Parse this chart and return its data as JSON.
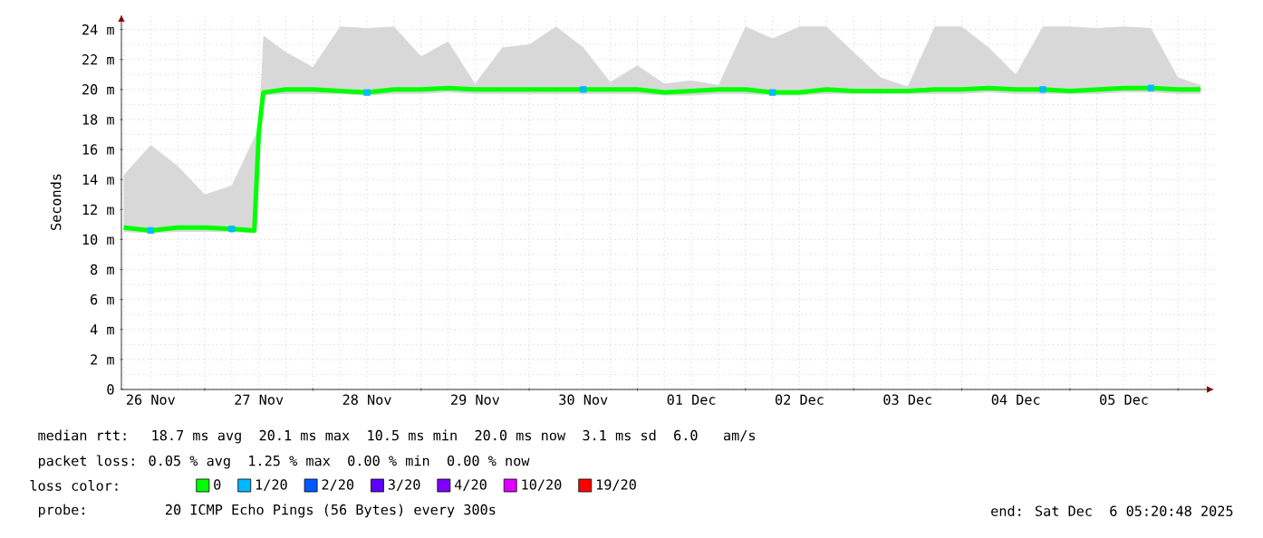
{
  "chart_data": {
    "type": "line",
    "ylabel": "Seconds",
    "legend_title": "loss color:",
    "legend": "bottom",
    "grid": true,
    "xlim": [
      "2025-11-26T05:30",
      "2025-12-06T08:00"
    ],
    "ylim": [
      0,
      25
    ],
    "xticks": [
      {
        "value": "2025-11-27",
        "label": null
      },
      {
        "value": "2025-11-28",
        "label": null
      },
      {
        "value": "2025-11-29",
        "label": null
      },
      {
        "value": "2025-11-30",
        "label": null
      },
      {
        "value": "2025-12-01",
        "label": null
      },
      {
        "value": "2025-12-02",
        "label": null
      },
      {
        "value": "2025-12-03",
        "label": null
      },
      {
        "value": "2025-12-04",
        "label": null
      },
      {
        "value": "2025-12-05",
        "label": null
      },
      {
        "value": "2025-12-06",
        "label": null
      },
      {
        "value": "2025-11-26T12:00",
        "label": "26 Nov"
      },
      {
        "value": "2025-11-27T12:00",
        "label": "27 Nov"
      },
      {
        "value": "2025-11-28T12:00",
        "label": "28 Nov"
      },
      {
        "value": "2025-11-29T12:00",
        "label": "29 Nov"
      },
      {
        "value": "2025-11-30T12:00",
        "label": "30 Nov"
      },
      {
        "value": "2025-12-01T12:00",
        "label": "01 Dec"
      },
      {
        "value": "2025-12-02T12:00",
        "label": "02 Dec"
      },
      {
        "value": "2025-12-03T12:00",
        "label": "03 Dec"
      },
      {
        "value": "2025-12-04T12:00",
        "label": "04 Dec"
      },
      {
        "value": "2025-12-05T12:00",
        "label": "05 Dec"
      }
    ],
    "yticks": [
      0,
      {
        "value": 2,
        "label": "2 m"
      },
      {
        "value": 4,
        "label": "4 m"
      },
      {
        "value": 6,
        "label": "6 m"
      },
      {
        "value": 8,
        "label": "8 m"
      },
      {
        "value": 10,
        "label": "10 m"
      },
      {
        "value": 12,
        "label": "12 m"
      },
      {
        "value": 14,
        "label": "14 m"
      },
      {
        "value": 16,
        "label": "16 m"
      },
      {
        "value": 18,
        "label": "18 m"
      },
      {
        "value": 20,
        "label": "20 m"
      },
      {
        "value": 22,
        "label": "22 m"
      },
      {
        "value": 24,
        "label": "24 m"
      }
    ],
    "x": [
      "2025-11-26T06:00",
      "2025-11-26T12:00",
      "2025-11-26T18:00",
      "2025-11-27T00:00",
      "2025-11-27T06:00",
      "2025-11-27T11:00",
      "2025-11-27T12:00",
      "2025-11-27T13:00",
      "2025-11-27T18:00",
      "2025-11-28T00:00",
      "2025-11-28T06:00",
      "2025-11-28T12:00",
      "2025-11-28T18:00",
      "2025-11-29T00:00",
      "2025-11-29T06:00",
      "2025-11-29T12:00",
      "2025-11-29T18:00",
      "2025-11-30T00:00",
      "2025-11-30T06:00",
      "2025-11-30T12:00",
      "2025-11-30T18:00",
      "2025-12-01T00:00",
      "2025-12-01T06:00",
      "2025-12-01T12:00",
      "2025-12-01T18:00",
      "2025-12-02T00:00",
      "2025-12-02T06:00",
      "2025-12-02T12:00",
      "2025-12-02T18:00",
      "2025-12-03T00:00",
      "2025-12-03T06:00",
      "2025-12-03T12:00",
      "2025-12-03T18:00",
      "2025-12-04T00:00",
      "2025-12-04T06:00",
      "2025-12-04T12:00",
      "2025-12-04T18:00",
      "2025-12-05T00:00",
      "2025-12-05T06:00",
      "2025-12-05T12:00",
      "2025-12-05T18:00",
      "2025-12-06T00:00",
      "2025-12-06T05:00"
    ],
    "series": [
      {
        "name": "0",
        "color": "#00ff00",
        "values": [
          10.8,
          10.6,
          10.8,
          10.8,
          10.7,
          10.6,
          17.2,
          19.8,
          20.0,
          20.0,
          19.9,
          19.8,
          20.0,
          20.0,
          20.1,
          20.0,
          20.0,
          20.0,
          20.0,
          20.0,
          20.0,
          20.0,
          19.8,
          19.9,
          20.0,
          20.0,
          19.8,
          19.8,
          20.0,
          19.9,
          19.9,
          19.9,
          20.0,
          20.0,
          20.1,
          20.0,
          20.0,
          19.9,
          20.0,
          20.1,
          20.1,
          20.0,
          20.0
        ],
        "lower": [
          10.5,
          10.4,
          10.5,
          10.5,
          10.5,
          10.4,
          16.6,
          19.6,
          19.7,
          19.7,
          19.7,
          19.6,
          19.7,
          19.7,
          19.8,
          19.7,
          19.7,
          19.7,
          19.7,
          19.7,
          19.7,
          19.7,
          19.6,
          19.6,
          19.7,
          19.7,
          19.6,
          19.6,
          19.7,
          19.7,
          19.7,
          19.7,
          19.7,
          19.7,
          19.8,
          19.7,
          19.7,
          19.7,
          19.7,
          19.8,
          19.8,
          19.7,
          19.7
        ],
        "upper": [
          14.3,
          16.3,
          14.9,
          13.0,
          13.6,
          16.8,
          17.4,
          23.6,
          22.5,
          21.5,
          24.2,
          24.1,
          24.2,
          22.2,
          23.2,
          20.4,
          22.8,
          23.0,
          24.2,
          22.8,
          20.5,
          21.6,
          20.4,
          20.6,
          20.3,
          24.2,
          23.4,
          24.2,
          24.2,
          22.5,
          20.8,
          20.2,
          24.2,
          24.2,
          22.8,
          21.0,
          24.2,
          24.2,
          24.1,
          24.2,
          24.1,
          20.8,
          20.3
        ]
      },
      {
        "name": "1/20",
        "type": "scatter",
        "marker": "square",
        "color": "#00b8ff",
        "x": [
          "2025-11-26T12:00",
          "2025-11-27T06:00",
          "2025-11-28T12:00",
          "2025-11-30T12:00",
          "2025-12-02T06:00",
          "2025-12-04T18:00",
          "2025-12-05T18:00"
        ],
        "values": [
          10.6,
          10.7,
          19.8,
          20.0,
          19.8,
          20.0,
          20.1
        ]
      },
      {
        "name": "2/20",
        "color": "#0059ff",
        "values": [
          null,
          null,
          null,
          null,
          null,
          null,
          null,
          null,
          null,
          null,
          null,
          null,
          null,
          null,
          null,
          null,
          null,
          null,
          null,
          null,
          null,
          null,
          null,
          null,
          null,
          null,
          null,
          null,
          null,
          null,
          null,
          null,
          null,
          null,
          null,
          null,
          null,
          null,
          null,
          null,
          null,
          null,
          null
        ]
      },
      {
        "name": "3/20",
        "color": "#5e00ff",
        "values": [
          null,
          null,
          null,
          null,
          null,
          null,
          null,
          null,
          null,
          null,
          null,
          null,
          null,
          null,
          null,
          null,
          null,
          null,
          null,
          null,
          null,
          null,
          null,
          null,
          null,
          null,
          null,
          null,
          null,
          null,
          null,
          null,
          null,
          null,
          null,
          null,
          null,
          null,
          null,
          null,
          null,
          null,
          null
        ]
      },
      {
        "name": "4/20",
        "color": "#7e00ff",
        "values": [
          null,
          null,
          null,
          null,
          null,
          null,
          null,
          null,
          null,
          null,
          null,
          null,
          null,
          null,
          null,
          null,
          null,
          null,
          null,
          null,
          null,
          null,
          null,
          null,
          null,
          null,
          null,
          null,
          null,
          null,
          null,
          null,
          null,
          null,
          null,
          null,
          null,
          null,
          null,
          null,
          null,
          null,
          null
        ]
      },
      {
        "name": "10/20",
        "color": "#dd00ff",
        "values": [
          null,
          null,
          null,
          null,
          null,
          null,
          null,
          null,
          null,
          null,
          null,
          null,
          null,
          null,
          null,
          null,
          null,
          null,
          null,
          null,
          null,
          null,
          null,
          null,
          null,
          null,
          null,
          null,
          null,
          null,
          null,
          null,
          null,
          null,
          null,
          null,
          null,
          null,
          null,
          null,
          null,
          null,
          null
        ]
      },
      {
        "name": "19/20",
        "color": "#ff0000",
        "values": [
          null,
          null,
          null,
          null,
          null,
          null,
          null,
          null,
          null,
          null,
          null,
          null,
          null,
          null,
          null,
          null,
          null,
          null,
          null,
          null,
          null,
          null,
          null,
          null,
          null,
          null,
          null,
          null,
          null,
          null,
          null,
          null,
          null,
          null,
          null,
          null,
          null,
          null,
          null,
          null,
          null,
          null,
          null
        ]
      }
    ],
    "annotations": [
      "median rtt:  18.7 ms avg  20.1 ms max  10.5 ms min  20.0 ms now  3.1 ms sd  6.0   am/s",
      "packet loss: 0.05 % avg  1.25 % max  0.00 % min  0.00 % now",
      "probe:       20 ICMP Echo Pings (56 Bytes) every 300s",
      "end: Sat Dec  6 05:20:48 2025"
    ]
  }
}
